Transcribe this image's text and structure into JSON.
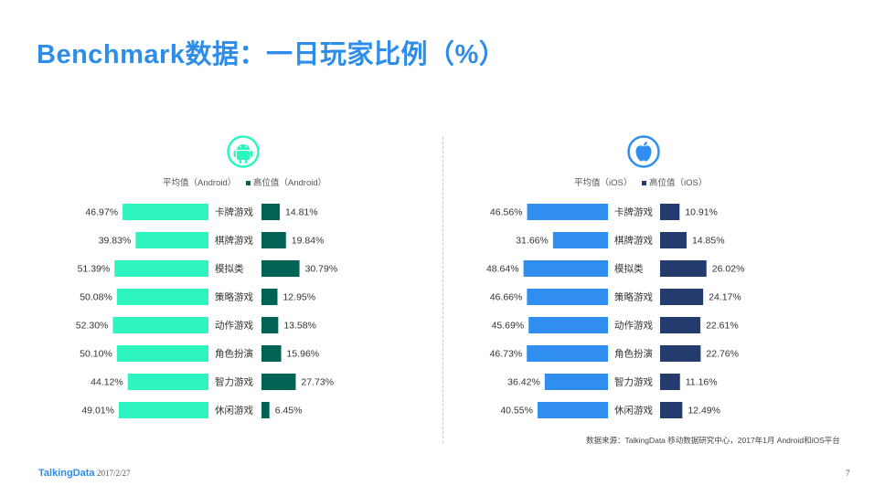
{
  "title": "Benchmark数据：一日玩家比例（%）",
  "chart_data": [
    {
      "type": "bar",
      "platform": "Android",
      "icon": "android-icon",
      "categories": [
        "卡牌游戏",
        "棋牌游戏",
        "模拟类",
        "策略游戏",
        "动作游戏",
        "角色扮演",
        "智力游戏",
        "休闲游戏"
      ],
      "series": [
        {
          "name": "平均值（Android）",
          "color": "#2ef5bf",
          "values": [
            46.97,
            39.83,
            51.39,
            50.08,
            52.3,
            50.1,
            44.12,
            49.01
          ],
          "labels": [
            "46.97%",
            "39.83%",
            "51.39%",
            "50.08%",
            "52.30%",
            "50.10%",
            "44.12%",
            "49.01%"
          ]
        },
        {
          "name": "高位值（Android）",
          "color": "#006355",
          "values": [
            14.81,
            19.84,
            30.79,
            12.95,
            13.58,
            15.96,
            27.73,
            6.45
          ],
          "labels": [
            "14.81%",
            "19.84%",
            "30.79%",
            "12.95%",
            "13.58%",
            "15.96%",
            "27.73%",
            "6.45%"
          ]
        }
      ]
    },
    {
      "type": "bar",
      "platform": "iOS",
      "icon": "apple-icon",
      "categories": [
        "卡牌游戏",
        "棋牌游戏",
        "模拟类",
        "策略游戏",
        "动作游戏",
        "角色扮演",
        "智力游戏",
        "休闲游戏"
      ],
      "series": [
        {
          "name": "平均值（iOS）",
          "color": "#2f8ef0",
          "values": [
            46.56,
            31.66,
            48.64,
            46.66,
            45.69,
            46.73,
            36.42,
            40.55
          ],
          "labels": [
            "46.56%",
            "31.66%",
            "48.64%",
            "46.66%",
            "45.69%",
            "46.73%",
            "36.42%",
            "40.55%"
          ]
        },
        {
          "name": "高位值（iOS）",
          "color": "#243b6e",
          "values": [
            10.91,
            14.85,
            26.02,
            24.17,
            22.61,
            22.76,
            11.16,
            12.49
          ],
          "labels": [
            "10.91%",
            "14.85%",
            "26.02%",
            "24.17%",
            "22.61%",
            "22.76%",
            "11.16%",
            "12.49%"
          ]
        }
      ]
    }
  ],
  "source": "数据来源：TalkingData 移动数据研究中心，2017年1月 Android和iOS平台",
  "footer": {
    "logo": "TalkingData",
    "date": "2017/2/27",
    "page": "7"
  }
}
